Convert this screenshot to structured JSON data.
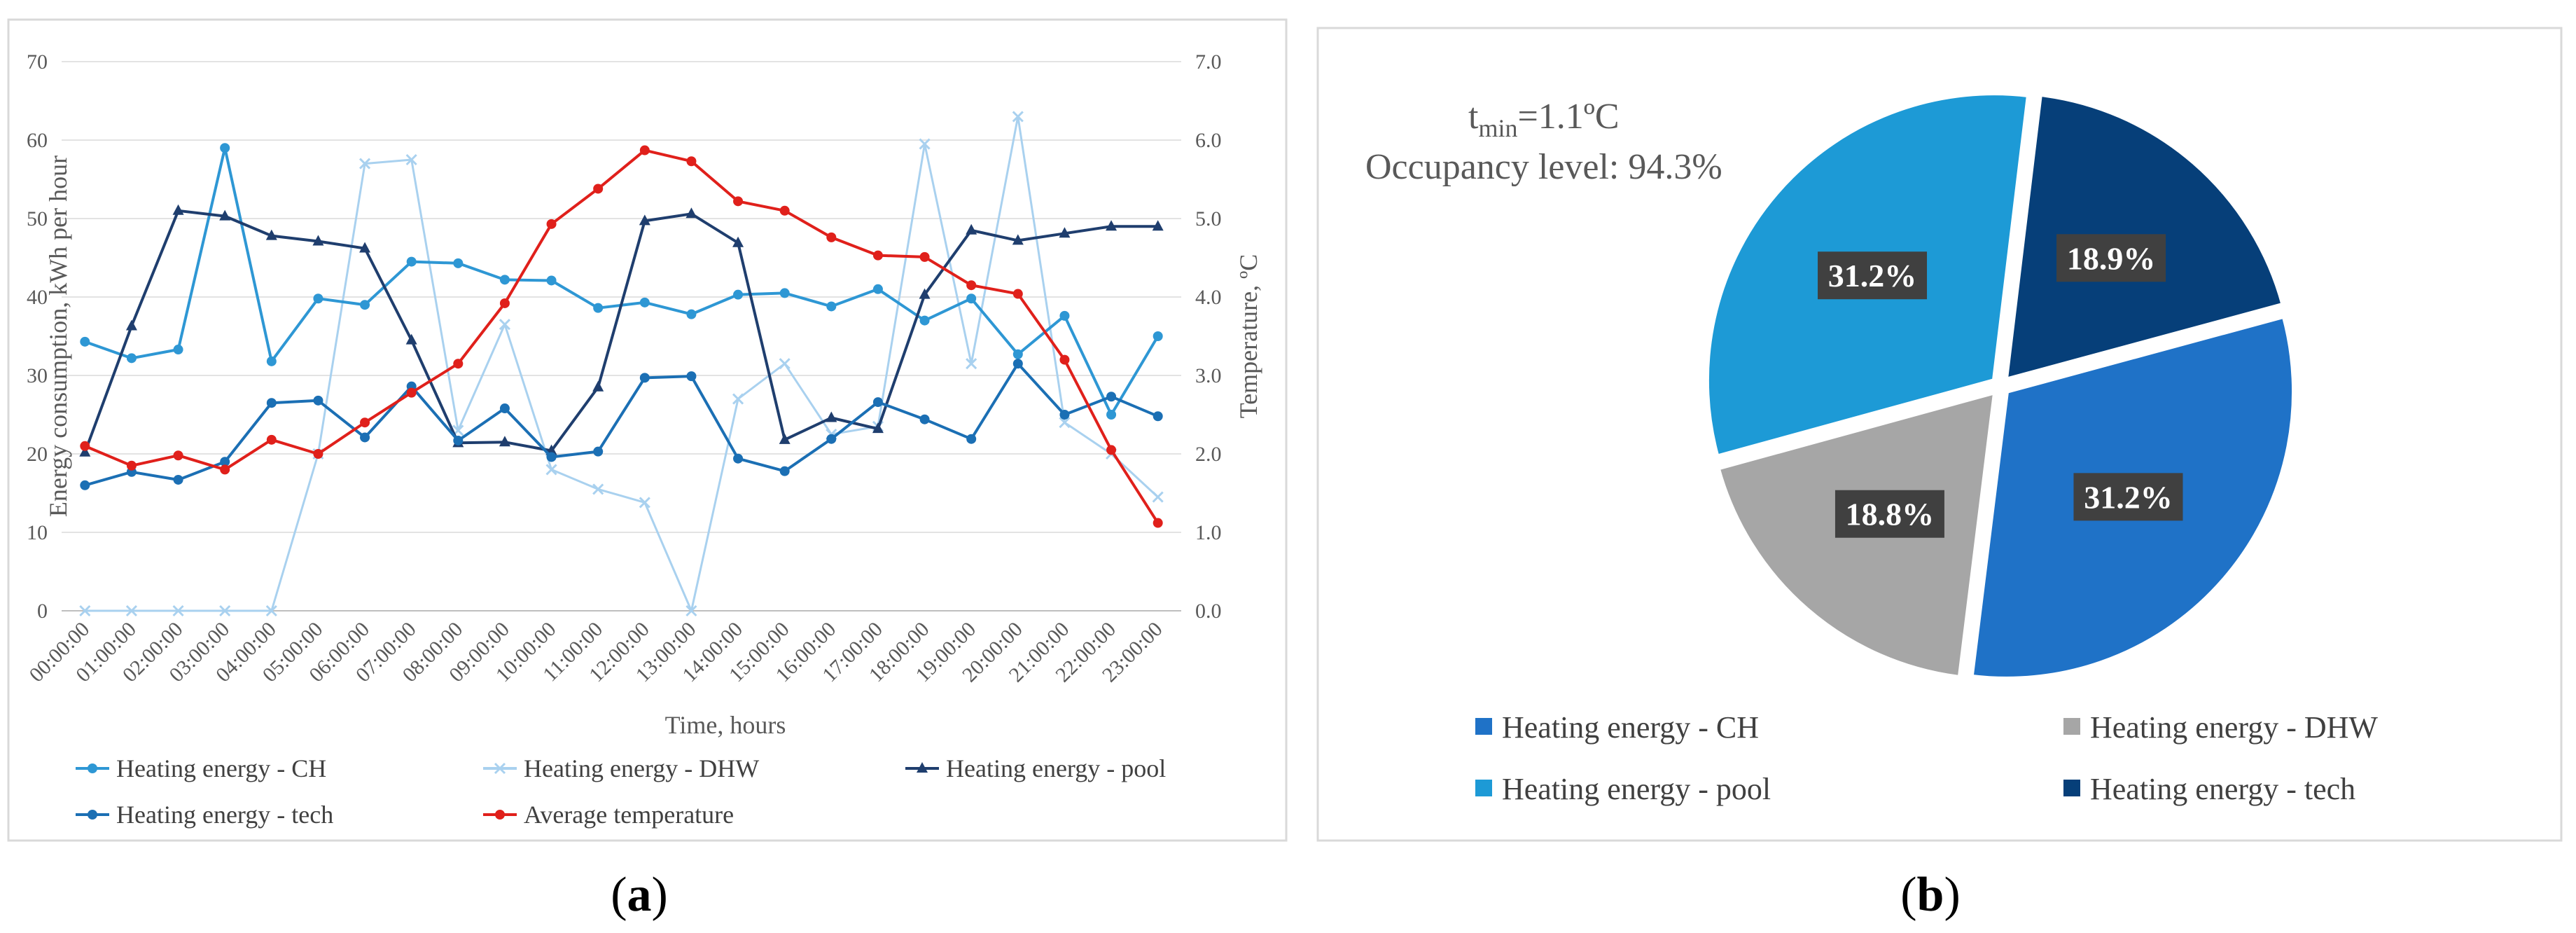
{
  "chart_data": [
    {
      "type": "line",
      "panel_label": "a",
      "xlabel": "Time, hours",
      "ylabel": "Energy consumption, kWh per hour",
      "y2label": "Temperature, ºC",
      "ylim": [
        0,
        70
      ],
      "y2lim": [
        0,
        7
      ],
      "yticks": [
        "0",
        "10",
        "20",
        "30",
        "40",
        "50",
        "60",
        "70"
      ],
      "y2ticks": [
        "0.0",
        "1.0",
        "2.0",
        "3.0",
        "4.0",
        "5.0",
        "6.0",
        "7.0"
      ],
      "grid": true,
      "legend_position": "bottom",
      "categories": [
        "00:00:00",
        "01:00:00",
        "02:00:00",
        "03:00:00",
        "04:00:00",
        "05:00:00",
        "06:00:00",
        "07:00:00",
        "08:00:00",
        "09:00:00",
        "10:00:00",
        "11:00:00",
        "12:00:00",
        "13:00:00",
        "14:00:00",
        "15:00:00",
        "16:00:00",
        "17:00:00",
        "18:00:00",
        "19:00:00",
        "20:00:00",
        "21:00:00",
        "22:00:00",
        "23:00:00"
      ],
      "series": [
        {
          "name": "Heating energy - DHW",
          "axis": "left",
          "color": "#a9d1ef",
          "marker": "x",
          "values": [
            0,
            0,
            0,
            0,
            0,
            20,
            57,
            57.5,
            23,
            36.5,
            18,
            15.5,
            13.8,
            0,
            27,
            31.5,
            22.5,
            23.5,
            59.5,
            31.5,
            63,
            24,
            20,
            14.5
          ]
        },
        {
          "name": "Heating energy - CH",
          "axis": "left",
          "color": "#2e97d4",
          "marker": "circle",
          "values": [
            34.3,
            32.2,
            33.3,
            59,
            31.8,
            39.8,
            39,
            44.5,
            44.3,
            42.2,
            42.1,
            38.6,
            39.3,
            37.8,
            40.3,
            40.5,
            38.8,
            41,
            37,
            39.8,
            32.7,
            37.6,
            25,
            35
          ]
        },
        {
          "name": "Heating energy - pool",
          "axis": "left",
          "color": "#1f3e6e",
          "marker": "triangle",
          "values": [
            20.2,
            36.3,
            51,
            50.3,
            47.8,
            47.1,
            46.2,
            34.5,
            21.4,
            21.5,
            20.4,
            28.5,
            49.7,
            50.6,
            46.9,
            21.8,
            24.6,
            23.2,
            40.3,
            48.5,
            47.2,
            48.1,
            49,
            49
          ]
        },
        {
          "name": "Heating energy - tech",
          "axis": "left",
          "color": "#1b6fb4",
          "marker": "circle",
          "values": [
            16,
            17.7,
            16.7,
            19,
            26.5,
            26.8,
            22.1,
            28.6,
            21.7,
            25.8,
            19.6,
            20.3,
            29.7,
            29.9,
            19.4,
            17.8,
            21.9,
            26.6,
            24.4,
            21.9,
            31.5,
            25,
            27.3,
            24.8
          ]
        },
        {
          "name": "Average temperature",
          "axis": "right",
          "color": "#e0201b",
          "marker": "circle",
          "values": [
            2.1,
            1.85,
            1.98,
            1.8,
            2.18,
            2.0,
            2.4,
            2.78,
            3.15,
            3.92,
            4.93,
            5.38,
            5.87,
            5.73,
            5.22,
            5.1,
            4.76,
            4.53,
            4.51,
            4.15,
            4.04,
            3.2,
            2.05,
            1.12
          ]
        }
      ],
      "legend_rows": [
        [
          "Heating energy - CH",
          "Heating energy - DHW",
          "Heating energy - pool"
        ],
        [
          "Heating energy - tech",
          "Average temperature"
        ]
      ]
    },
    {
      "type": "pie",
      "panel_label": "b",
      "annotation_line1_main": "t",
      "annotation_line1_sub": "min",
      "annotation_line1_rest": "=1.1ºC",
      "annotation_line2": "Occupancy level: 94.3%",
      "slices": [
        {
          "name": "Heating energy - tech",
          "value": 18.9,
          "label": "18.9%",
          "color": "#063f79"
        },
        {
          "name": "Heating energy - CH",
          "value": 31.2,
          "label": "31.2%",
          "color": "#1f72c7"
        },
        {
          "name": "Heating energy - DHW",
          "value": 18.8,
          "label": "18.8%",
          "color": "#a6a6a6"
        },
        {
          "name": "Heating energy - pool",
          "value": 31.2,
          "label": "31.2%",
          "color": "#1d9ad6"
        }
      ],
      "legend": [
        {
          "name": "Heating energy - CH",
          "color": "#1f72c7"
        },
        {
          "name": "Heating energy - DHW",
          "color": "#a6a6a6"
        },
        {
          "name": "Heating energy - pool",
          "color": "#1d9ad6"
        },
        {
          "name": "Heating energy - tech",
          "color": "#063f79"
        }
      ]
    }
  ],
  "captions": {
    "a_open": "(",
    "a_letter": "a",
    "a_close": ")",
    "b_open": "(",
    "b_letter": "b",
    "b_close": ")"
  }
}
